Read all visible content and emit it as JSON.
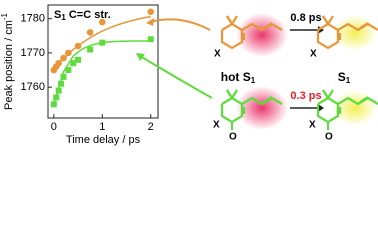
{
  "chart_data": {
    "type": "scatter",
    "annotation": {
      "text": "S",
      "sub": "1",
      "rest": " C=C str."
    },
    "xlabel": "Time delay / ps",
    "ylabel": {
      "text": "Peak position / cm",
      "sup": "-1"
    },
    "xlim": [
      -0.12,
      2.15
    ],
    "xticks": [
      0,
      1,
      2
    ],
    "ylim": [
      1751,
      1784
    ],
    "yticks": [
      1760,
      1770,
      1780
    ],
    "series": [
      {
        "color": "#e8963a",
        "marker": "circle",
        "x": [
          0,
          0.05,
          0.1,
          0.2,
          0.3,
          0.5,
          0.75,
          1.0,
          2.0
        ],
        "values": [
          1765,
          1766,
          1767,
          1768.5,
          1770,
          1772,
          1776,
          1779,
          1782
        ],
        "fit": {
          "x": [
            0,
            0.2,
            0.4,
            0.6,
            0.8,
            1.0,
            1.2,
            1.4,
            1.6,
            1.8,
            2.0
          ],
          "values": [
            1765,
            1768.3,
            1771.0,
            1773.1,
            1774.9,
            1776.4,
            1777.6,
            1778.6,
            1779.4,
            1780.1,
            1780.6
          ]
        }
      },
      {
        "color": "#5ddc3c",
        "marker": "square",
        "x": [
          0,
          0.05,
          0.1,
          0.15,
          0.2,
          0.3,
          0.4,
          0.5,
          0.75,
          1.0,
          2.0
        ],
        "values": [
          1755,
          1757,
          1759,
          1761,
          1763,
          1765,
          1767,
          1768,
          1771,
          1773,
          1774
        ],
        "fit": {
          "x": [
            0,
            0.2,
            0.4,
            0.6,
            0.8,
            1.0,
            1.2,
            1.4,
            1.6,
            1.8,
            2.0
          ],
          "values": [
            1755,
            1764.5,
            1769.1,
            1771.3,
            1772.4,
            1773.0,
            1773.3,
            1773.4,
            1773.5,
            1773.5,
            1773.5
          ]
        }
      }
    ]
  },
  "diagram": {
    "top": {
      "hot": {
        "text": "hot S",
        "sub": "1"
      },
      "rate": "0.8 ps",
      "cool": {
        "text": "S",
        "sub": "1"
      }
    },
    "bottom": {
      "rate": "0.3 ps"
    },
    "atoms": {
      "x": "X",
      "o": "O"
    }
  }
}
